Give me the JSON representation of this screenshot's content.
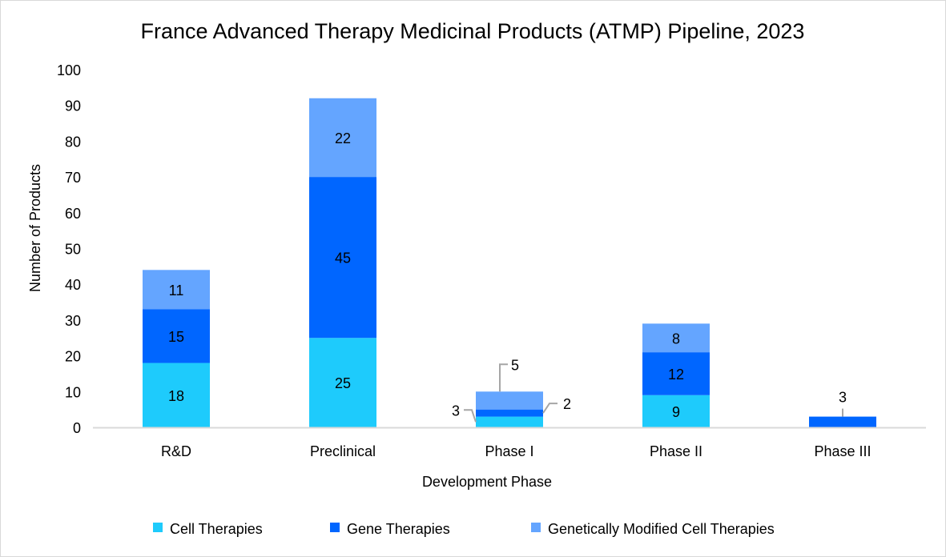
{
  "chart_data": {
    "type": "bar",
    "stacked": true,
    "title": "France Advanced Therapy Medicinal Products (ATMP) Pipeline, 2023",
    "xlabel": "Development Phase",
    "ylabel": "Number of Products",
    "ylim": [
      0,
      100
    ],
    "yticks": [
      0,
      10,
      20,
      30,
      40,
      50,
      60,
      70,
      80,
      90,
      100
    ],
    "grid": false,
    "legend_position": "bottom",
    "categories": [
      "R&D",
      "Preclinical",
      "Phase I",
      "Phase II",
      "Phase III"
    ],
    "series": [
      {
        "name": "Cell Therapies",
        "color": "#1ecbfc",
        "values": [
          18,
          25,
          3,
          9,
          0
        ]
      },
      {
        "name": "Gene Therapies",
        "color": "#0066ff",
        "values": [
          15,
          45,
          2,
          12,
          3
        ]
      },
      {
        "name": "Genetically Modified Cell Therapies",
        "color": "#64a5ff",
        "values": [
          11,
          22,
          5,
          8,
          0
        ]
      }
    ],
    "data_labels": [
      [
        "18",
        "25",
        "3",
        "9",
        ""
      ],
      [
        "15",
        "45",
        "2",
        "12",
        "3"
      ],
      [
        "11",
        "22",
        "5",
        "8",
        ""
      ]
    ]
  }
}
